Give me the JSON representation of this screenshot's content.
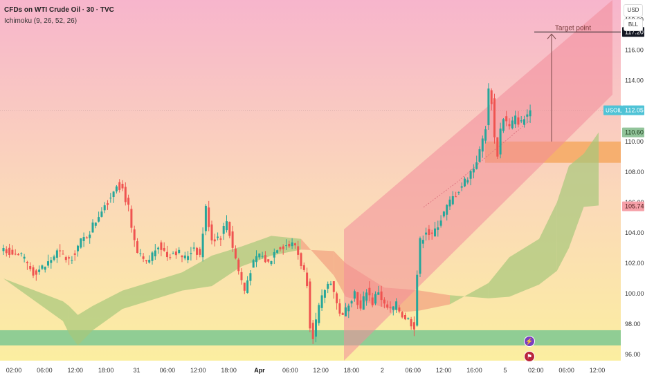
{
  "header": {
    "title": "CFDs on WTI Crude Oil · 30 · TVC",
    "indicator": "Ichimoku (9, 26, 52, 26)"
  },
  "currency": {
    "usd": "USD",
    "unit": "BLL"
  },
  "annotation": {
    "target_label": "Target point"
  },
  "symbol_label": "USOIL",
  "icons": {
    "event_lightning": "lightning-icon",
    "event_us_flag": "us-flag-icon"
  },
  "colors": {
    "bull": "#26a69a",
    "bear": "#ef5350",
    "channel": "#f28c9a",
    "demand_zone": "#f5a65b",
    "support_zone": "#6cc38f",
    "cloud_green": "#a6c77a",
    "cloud_red": "#f2a080",
    "target_tag": "#131722",
    "last_price_tag": "#4fc3d6",
    "span_tag": "#92c49a",
    "low_tag": "#f5a0a8"
  },
  "chart_data": {
    "type": "candlestick",
    "title": "CFDs on WTI Crude Oil · 30 · TVC",
    "timeframe_minutes": 30,
    "ylim": [
      95.6,
      119.3
    ],
    "y_ticks": [
      96,
      98,
      100,
      102,
      104,
      106,
      108,
      110,
      112,
      114,
      116,
      118
    ],
    "x_ticks": [
      {
        "label": "02:00",
        "bold": false
      },
      {
        "label": "06:00",
        "bold": false
      },
      {
        "label": "12:00",
        "bold": false
      },
      {
        "label": "18:00",
        "bold": false
      },
      {
        "label": "31",
        "bold": false
      },
      {
        "label": "06:00",
        "bold": false
      },
      {
        "label": "12:00",
        "bold": false
      },
      {
        "label": "18:00",
        "bold": false
      },
      {
        "label": "Apr",
        "bold": true
      },
      {
        "label": "06:00",
        "bold": false
      },
      {
        "label": "12:00",
        "bold": false
      },
      {
        "label": "18:00",
        "bold": false
      },
      {
        "label": "2",
        "bold": false
      },
      {
        "label": "06:00",
        "bold": false
      },
      {
        "label": "12:00",
        "bold": false
      },
      {
        "label": "16:00",
        "bold": false
      },
      {
        "label": "5",
        "bold": false
      },
      {
        "label": "02:00",
        "bold": false
      },
      {
        "label": "06:00",
        "bold": false
      },
      {
        "label": "12:00",
        "bold": false
      }
    ],
    "price_tags": [
      {
        "label": "117.20",
        "value": 117.2,
        "kind": "target"
      },
      {
        "label": "112.05",
        "value": 112.05,
        "kind": "last"
      },
      {
        "label": "110.60",
        "value": 110.6,
        "kind": "span"
      },
      {
        "label": "105.74",
        "value": 105.74,
        "kind": "low"
      }
    ],
    "target_price": 117.2,
    "demand_zone": [
      108.6,
      110.0
    ],
    "support_zone": [
      96.6,
      97.6
    ],
    "anchors": [
      [
        0,
        103.0
      ],
      [
        6,
        102.4
      ],
      [
        10,
        101.4
      ],
      [
        14,
        101.8
      ],
      [
        18,
        102.7
      ],
      [
        22,
        102.2
      ],
      [
        26,
        103.4
      ],
      [
        28,
        103.8
      ],
      [
        31,
        104.8
      ],
      [
        33,
        105.6
      ],
      [
        36,
        106.4
      ],
      [
        38,
        107.3
      ],
      [
        40,
        106.9
      ],
      [
        42,
        105.6
      ],
      [
        43,
        104.1
      ],
      [
        45,
        102.6
      ],
      [
        48,
        101.9
      ],
      [
        52,
        103.3
      ],
      [
        55,
        102.5
      ],
      [
        58,
        102.8
      ],
      [
        61,
        102.3
      ],
      [
        64,
        103.1
      ],
      [
        66,
        102.5
      ],
      [
        68,
        105.6
      ],
      [
        70,
        103.6
      ],
      [
        73,
        103.8
      ],
      [
        75,
        104.8
      ],
      [
        77,
        103.1
      ],
      [
        79,
        101.5
      ],
      [
        81,
        100.2
      ],
      [
        83,
        101.6
      ],
      [
        86,
        102.6
      ],
      [
        89,
        102.0
      ],
      [
        92,
        103.1
      ],
      [
        95,
        103.2
      ],
      [
        98,
        103.2
      ],
      [
        100,
        102.0
      ],
      [
        102,
        100.8
      ],
      [
        103,
        98.0
      ],
      [
        104,
        97.3
      ],
      [
        106,
        99.0
      ],
      [
        108,
        100.3
      ],
      [
        110,
        100.9
      ],
      [
        112,
        99.3
      ],
      [
        114,
        98.4
      ],
      [
        116,
        99.5
      ],
      [
        118,
        100.1
      ],
      [
        120,
        98.9
      ],
      [
        122,
        100.3
      ],
      [
        124,
        99.4
      ],
      [
        126,
        100.2
      ],
      [
        128,
        99.2
      ],
      [
        130,
        98.9
      ],
      [
        132,
        99.2
      ],
      [
        134,
        98.6
      ],
      [
        136,
        98.3
      ],
      [
        138,
        97.9
      ],
      [
        139,
        101.3
      ],
      [
        140,
        103.4
      ],
      [
        142,
        104.2
      ],
      [
        144,
        103.7
      ],
      [
        146,
        104.6
      ],
      [
        148,
        105.3
      ],
      [
        150,
        106.0
      ],
      [
        152,
        106.6
      ],
      [
        154,
        107.1
      ],
      [
        156,
        107.7
      ],
      [
        158,
        108.3
      ],
      [
        160,
        109.3
      ],
      [
        162,
        111.0
      ],
      [
        163,
        113.3
      ],
      [
        164,
        112.7
      ],
      [
        165,
        110.2
      ],
      [
        166,
        109.2
      ],
      [
        167,
        110.8
      ],
      [
        168,
        111.6
      ],
      [
        170,
        110.9
      ],
      [
        172,
        111.5
      ],
      [
        174,
        111.2
      ],
      [
        176,
        111.8
      ],
      [
        177,
        112.05
      ]
    ],
    "ichimoku_cloud": {
      "span_a": [
        [
          0,
          101
        ],
        [
          20,
          99.5
        ],
        [
          22,
          99.2
        ],
        [
          25,
          98.6
        ],
        [
          30,
          99.2
        ],
        [
          40,
          100.2
        ],
        [
          60,
          101.4
        ],
        [
          70,
          102.5
        ],
        [
          80,
          103.1
        ],
        [
          90,
          103.8
        ],
        [
          100,
          103.6
        ],
        [
          111,
          101.2
        ],
        [
          115,
          99.8
        ],
        [
          128,
          99.1
        ],
        [
          135,
          98.8
        ],
        [
          140,
          98.9
        ],
        [
          150,
          99.3
        ],
        [
          163,
          100.7
        ],
        [
          170,
          102.4
        ],
        [
          180,
          103.6
        ],
        [
          186,
          106
        ],
        [
          190,
          108.4
        ],
        [
          195,
          109.2
        ],
        [
          200,
          110.6
        ]
      ],
      "span_b": [
        [
          0,
          101
        ],
        [
          20,
          98.2
        ],
        [
          22,
          97.4
        ],
        [
          25,
          96.6
        ],
        [
          30,
          97.6
        ],
        [
          40,
          99.0
        ],
        [
          60,
          100.2
        ],
        [
          70,
          100.5
        ],
        [
          80,
          101.8
        ],
        [
          90,
          102.5
        ],
        [
          100,
          102.9
        ],
        [
          111,
          102.8
        ],
        [
          115,
          102.0
        ],
        [
          128,
          100.4
        ],
        [
          135,
          100.3
        ],
        [
          140,
          100.2
        ],
        [
          150,
          99.9
        ],
        [
          163,
          99.7
        ],
        [
          170,
          99.8
        ],
        [
          180,
          100.6
        ],
        [
          186,
          101.5
        ],
        [
          190,
          103.0
        ],
        [
          195,
          105.7
        ],
        [
          200,
          105.8
        ]
      ]
    }
  }
}
